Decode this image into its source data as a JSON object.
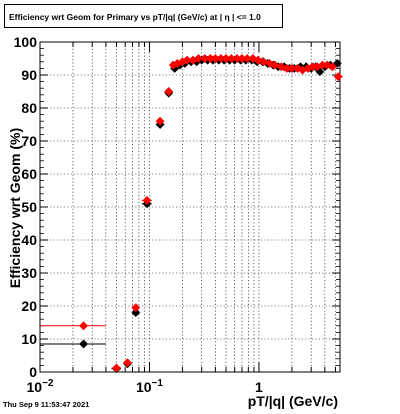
{
  "title": "Efficiency wrt Geom for Primary vs pT/|q| (GeV/c) at |  η | <= 1.0",
  "footer_text": "Thu Sep  9 11:53:47 2021",
  "chart_data": {
    "type": "scatter",
    "title": "Efficiency wrt Geom for Primary vs pT/|q| (GeV/c) at |  η | <= 1.0",
    "xlabel": "pT/|q| (GeV/c)",
    "ylabel": "Efficiency wrt Geom (%)",
    "xscale": "log",
    "xlim": [
      0.01,
      5.5
    ],
    "ylim": [
      0,
      100
    ],
    "grid": true,
    "x_tick_labels": [
      {
        "value": 0.01,
        "base": "10",
        "exp": "−2"
      },
      {
        "value": 0.1,
        "base": "10",
        "exp": "−1"
      },
      {
        "value": 1,
        "base": "1",
        "exp": ""
      }
    ],
    "y_ticks": [
      "0",
      "10",
      "20",
      "30",
      "40",
      "50",
      "60",
      "70",
      "80",
      "90",
      "100"
    ],
    "series": [
      {
        "color": "#000000",
        "marker": "diamond",
        "points": [
          {
            "x": 0.025,
            "y": 8.5,
            "xerr": [
              0.01,
              0.04
            ]
          },
          {
            "x": 0.05,
            "y": 1,
            "xerr": [
              0.045,
              0.055
            ]
          },
          {
            "x": 0.063,
            "y": 2.5,
            "xerr": [
              0.058,
              0.068
            ]
          },
          {
            "x": 0.075,
            "y": 18,
            "xerr": [
              0.071,
              0.079
            ]
          },
          {
            "x": 0.095,
            "y": 51,
            "xerr": [
              0.085,
              0.105
            ]
          },
          {
            "x": 0.125,
            "y": 75,
            "xerr": [
              0.115,
              0.135
            ]
          },
          {
            "x": 0.15,
            "y": 84.5
          },
          {
            "x": 0.17,
            "y": 92
          },
          {
            "x": 0.19,
            "y": 93
          },
          {
            "x": 0.21,
            "y": 93.5
          },
          {
            "x": 0.24,
            "y": 94
          },
          {
            "x": 0.27,
            "y": 94
          },
          {
            "x": 0.3,
            "y": 94.5
          },
          {
            "x": 0.34,
            "y": 94.5
          },
          {
            "x": 0.38,
            "y": 94.5
          },
          {
            "x": 0.43,
            "y": 94.5
          },
          {
            "x": 0.48,
            "y": 94.5
          },
          {
            "x": 0.54,
            "y": 94.5
          },
          {
            "x": 0.6,
            "y": 94.5
          },
          {
            "x": 0.68,
            "y": 94.5
          },
          {
            "x": 0.76,
            "y": 94.5
          },
          {
            "x": 0.86,
            "y": 94.5
          },
          {
            "x": 0.96,
            "y": 94
          },
          {
            "x": 1.08,
            "y": 94
          },
          {
            "x": 1.2,
            "y": 93.5
          },
          {
            "x": 1.35,
            "y": 93
          },
          {
            "x": 1.5,
            "y": 92.5
          },
          {
            "x": 1.7,
            "y": 92.5
          },
          {
            "x": 1.9,
            "y": 92
          },
          {
            "x": 2.1,
            "y": 92
          },
          {
            "x": 2.4,
            "y": 92.5
          },
          {
            "x": 2.7,
            "y": 92.5
          },
          {
            "x": 3.0,
            "y": 92
          },
          {
            "x": 3.3,
            "y": 92.5
          },
          {
            "x": 3.6,
            "y": 91
          },
          {
            "x": 4.0,
            "y": 92.5
          },
          {
            "x": 4.5,
            "y": 93
          },
          {
            "x": 5.2,
            "y": 93.5
          }
        ]
      },
      {
        "color": "#ff0000",
        "marker": "diamond",
        "points": [
          {
            "x": 0.025,
            "y": 14,
            "xerr": [
              0.01,
              0.04
            ]
          },
          {
            "x": 0.05,
            "y": 1.2,
            "xerr": [
              0.045,
              0.055
            ]
          },
          {
            "x": 0.063,
            "y": 2.8,
            "xerr": [
              0.058,
              0.068
            ]
          },
          {
            "x": 0.075,
            "y": 19.5,
            "xerr": [
              0.071,
              0.079
            ]
          },
          {
            "x": 0.095,
            "y": 52,
            "xerr": [
              0.085,
              0.105
            ]
          },
          {
            "x": 0.125,
            "y": 76,
            "xerr": [
              0.115,
              0.135
            ]
          },
          {
            "x": 0.15,
            "y": 85
          },
          {
            "x": 0.165,
            "y": 93
          },
          {
            "x": 0.18,
            "y": 93.5
          },
          {
            "x": 0.2,
            "y": 94
          },
          {
            "x": 0.22,
            "y": 94.5
          },
          {
            "x": 0.25,
            "y": 94.5
          },
          {
            "x": 0.28,
            "y": 95
          },
          {
            "x": 0.32,
            "y": 95
          },
          {
            "x": 0.36,
            "y": 95
          },
          {
            "x": 0.4,
            "y": 95
          },
          {
            "x": 0.45,
            "y": 95
          },
          {
            "x": 0.5,
            "y": 95
          },
          {
            "x": 0.56,
            "y": 95
          },
          {
            "x": 0.63,
            "y": 95
          },
          {
            "x": 0.7,
            "y": 95
          },
          {
            "x": 0.78,
            "y": 95
          },
          {
            "x": 0.88,
            "y": 95
          },
          {
            "x": 0.98,
            "y": 94.5
          },
          {
            "x": 1.1,
            "y": 94
          },
          {
            "x": 1.25,
            "y": 93.5
          },
          {
            "x": 1.4,
            "y": 93
          },
          {
            "x": 1.6,
            "y": 92.5
          },
          {
            "x": 1.8,
            "y": 92
          },
          {
            "x": 2.0,
            "y": 92
          },
          {
            "x": 2.25,
            "y": 92
          },
          {
            "x": 2.5,
            "y": 91.5
          },
          {
            "x": 2.8,
            "y": 92
          },
          {
            "x": 3.1,
            "y": 92.5
          },
          {
            "x": 3.4,
            "y": 92.5
          },
          {
            "x": 3.8,
            "y": 93
          },
          {
            "x": 4.2,
            "y": 93
          },
          {
            "x": 4.7,
            "y": 92.5
          },
          {
            "x": 5.3,
            "y": 89.5
          }
        ]
      }
    ]
  }
}
